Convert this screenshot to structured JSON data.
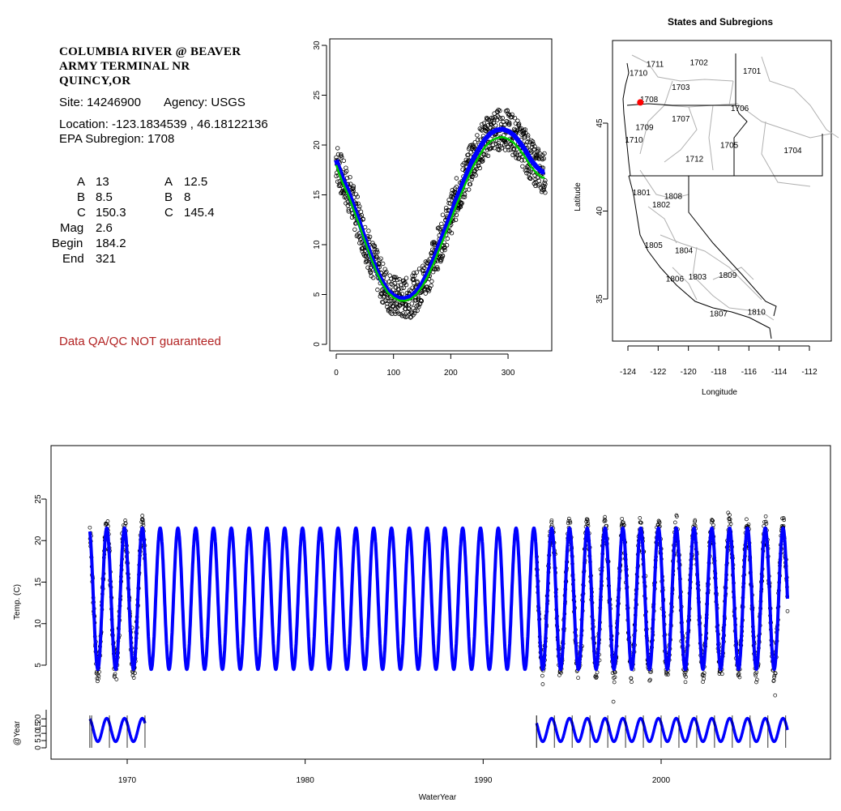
{
  "header": {
    "title_lines": [
      "COLUMBIA RIVER @ BEAVER",
      "ARMY TERMINAL NR",
      "QUINCY,OR"
    ],
    "site_label": "Site: 14246900",
    "agency_label": "Agency: USGS",
    "location_label": "Location: -123.1834539 , 46.18122136",
    "subregion_label": "EPA Subregion: 1708"
  },
  "params": {
    "left": [
      {
        "name": "A",
        "value": "13"
      },
      {
        "name": "B",
        "value": "8.5"
      },
      {
        "name": "C",
        "value": "150.3"
      },
      {
        "name": "Mag",
        "value": "2.6"
      },
      {
        "name": "Begin",
        "value": "184.2"
      },
      {
        "name": "End",
        "value": "321"
      }
    ],
    "right": [
      {
        "name": "A",
        "value": "12.5"
      },
      {
        "name": "B",
        "value": "8"
      },
      {
        "name": "C",
        "value": "145.4"
      }
    ]
  },
  "qa_note": "Data QA/QC NOT guaranteed",
  "colors": {
    "observed": "#000000",
    "fit_blue": "#0000ff",
    "fit_green": "#00cc00",
    "site_marker": "#ff0000",
    "qa_text": "#b22222"
  },
  "chart_data": [
    {
      "type": "scatter",
      "name": "annual-cycle",
      "xlim": [
        0,
        365
      ],
      "ylim": [
        0,
        30
      ],
      "x_ticks": [
        "0",
        "100",
        "200",
        "300"
      ],
      "y_ticks": [
        "0",
        "5",
        "10",
        "15",
        "20",
        "25",
        "30"
      ],
      "fit_blue": {
        "A": 13,
        "B": 8.5,
        "C": 150.3
      },
      "fit_green": {
        "A": 12.5,
        "B": 8,
        "C": 145.4
      },
      "observed_points": [
        [
          0,
          18.5
        ],
        [
          10,
          16.8
        ],
        [
          20,
          15.5
        ],
        [
          30,
          13.9
        ],
        [
          40,
          12.3
        ],
        [
          50,
          10.6
        ],
        [
          60,
          9.0
        ],
        [
          70,
          7.5
        ],
        [
          80,
          6.3
        ],
        [
          90,
          5.4
        ],
        [
          100,
          4.9
        ],
        [
          110,
          4.6
        ],
        [
          120,
          4.6
        ],
        [
          130,
          4.8
        ],
        [
          140,
          5.3
        ],
        [
          150,
          6.1
        ],
        [
          160,
          7.2
        ],
        [
          170,
          8.5
        ],
        [
          180,
          10.0
        ],
        [
          190,
          11.5
        ],
        [
          200,
          13.0
        ],
        [
          210,
          14.6
        ],
        [
          220,
          16.0
        ],
        [
          230,
          17.4
        ],
        [
          240,
          18.7
        ],
        [
          250,
          19.7
        ],
        [
          260,
          20.6
        ],
        [
          270,
          21.2
        ],
        [
          280,
          21.5
        ],
        [
          290,
          21.6
        ],
        [
          300,
          21.4
        ],
        [
          310,
          21.0
        ],
        [
          320,
          20.3
        ],
        [
          330,
          19.5
        ],
        [
          340,
          18.5
        ],
        [
          350,
          17.8
        ],
        [
          360,
          17.3
        ]
      ]
    },
    {
      "type": "map",
      "name": "states-and-subregions",
      "title": "States and Subregions",
      "xlabel": "Longitude",
      "ylabel": "Latitude",
      "xlim": [
        -125.5,
        -110.5
      ],
      "ylim": [
        32,
        49.5
      ],
      "x_ticks": [
        "-124",
        "-122",
        "-120",
        "-118",
        "-116",
        "-114",
        "-112"
      ],
      "y_ticks": [
        "35",
        "40",
        "45"
      ],
      "site": {
        "lon": -123.18,
        "lat": 46.18
      },
      "subregion_labels": [
        {
          "label": "1711",
          "lon": -122.2,
          "lat": 48.2
        },
        {
          "label": "1702",
          "lon": -119.3,
          "lat": 48.3
        },
        {
          "label": "1701",
          "lon": -115.8,
          "lat": 47.8
        },
        {
          "label": "1710",
          "lon": -123.3,
          "lat": 47.7
        },
        {
          "label": "1703",
          "lon": -120.5,
          "lat": 46.9
        },
        {
          "label": "1708",
          "lon": -122.6,
          "lat": 46.2
        },
        {
          "label": "1706",
          "lon": -116.6,
          "lat": 45.7
        },
        {
          "label": "1707",
          "lon": -120.5,
          "lat": 45.1
        },
        {
          "label": "1709",
          "lon": -122.9,
          "lat": 44.6
        },
        {
          "label": "1710",
          "lon": -123.6,
          "lat": 43.9
        },
        {
          "label": "1705",
          "lon": -117.3,
          "lat": 43.6
        },
        {
          "label": "1704",
          "lon": -113.1,
          "lat": 43.3
        },
        {
          "label": "1712",
          "lon": -119.6,
          "lat": 42.8
        },
        {
          "label": "1801",
          "lon": -123.1,
          "lat": 40.9
        },
        {
          "label": "1808",
          "lon": -121.0,
          "lat": 40.7
        },
        {
          "label": "1802",
          "lon": -121.8,
          "lat": 40.2
        },
        {
          "label": "1805",
          "lon": -122.3,
          "lat": 37.9
        },
        {
          "label": "1804",
          "lon": -120.3,
          "lat": 37.6
        },
        {
          "label": "1809",
          "lon": -117.4,
          "lat": 36.2
        },
        {
          "label": "1806",
          "lon": -120.9,
          "lat": 36.0
        },
        {
          "label": "1803",
          "lon": -119.4,
          "lat": 36.1
        },
        {
          "label": "1807",
          "lon": -118.0,
          "lat": 34.0
        },
        {
          "label": "1810",
          "lon": -115.5,
          "lat": 34.1
        }
      ]
    },
    {
      "type": "line",
      "name": "time-series",
      "xlabel": "WaterYear",
      "ylabel": "Temp. (C)",
      "ylabel2": "@Year",
      "xlim": [
        1963.5,
        2009.5
      ],
      "ylim": [
        0,
        30
      ],
      "x_ticks": [
        "1970",
        "1980",
        "1990",
        "2000"
      ],
      "y_ticks": [
        "5",
        "10",
        "15",
        "20",
        "25"
      ],
      "y2_ticks": [
        "0",
        "5",
        "10",
        "15",
        "20"
      ],
      "blue_fit_span": [
        1967.9,
        2007.1
      ],
      "observed_periods": [
        [
          1967.9,
          1971.0
        ],
        [
          1993.0,
          2007.1
        ]
      ],
      "fit_min": 4.5,
      "fit_max": 21.5
    }
  ]
}
